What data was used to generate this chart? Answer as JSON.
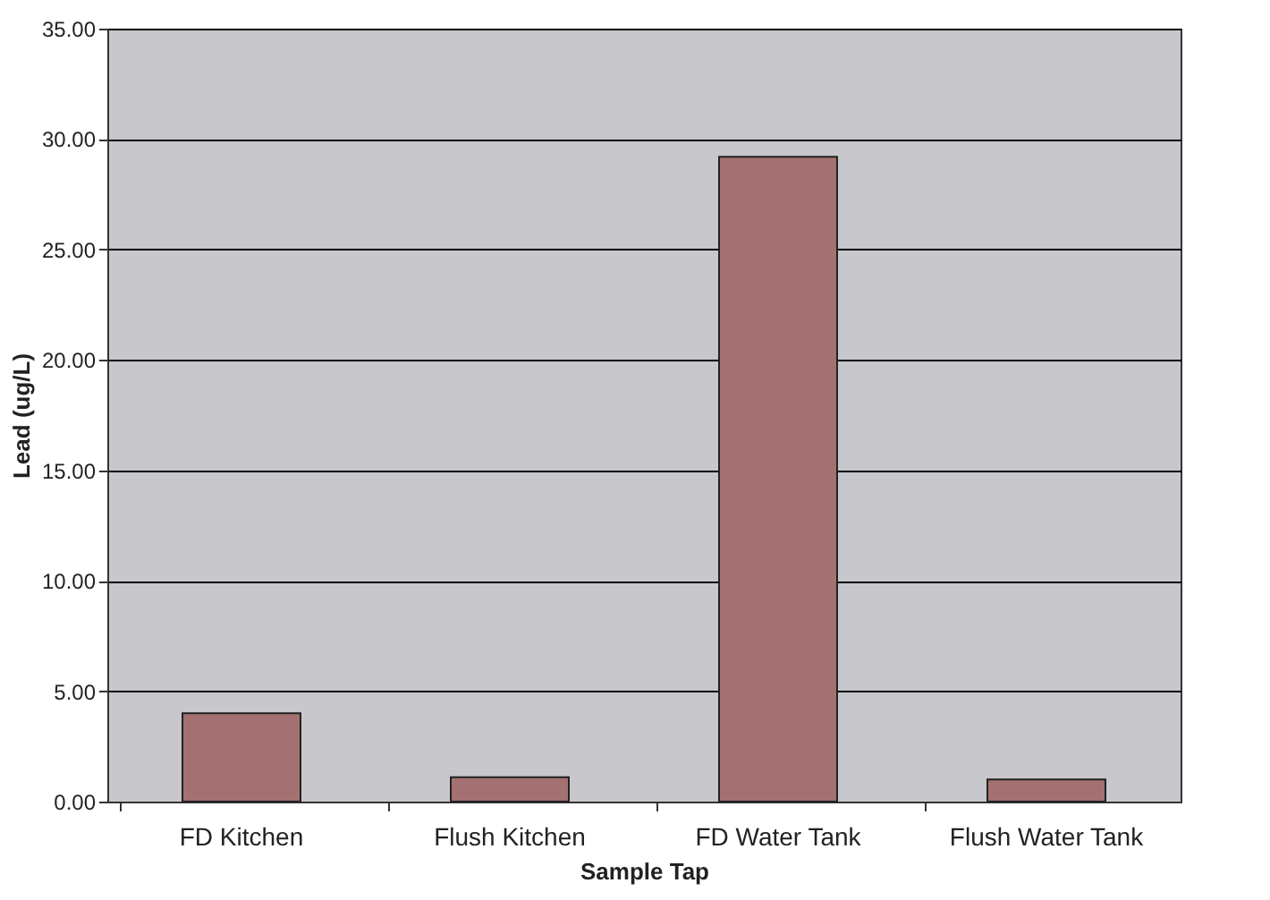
{
  "chart_data": {
    "type": "bar",
    "xlabel": "Sample Tap",
    "ylabel": "Lead (ug/L)",
    "categories": [
      "FD Kitchen",
      "Flush Kitchen",
      "FD Water Tank",
      "Flush Water Tank"
    ],
    "values": [
      4.0,
      1.1,
      29.2,
      1.0
    ],
    "color": "#a37171",
    "ylim": [
      0,
      35
    ],
    "yticks": [
      {
        "value": 0,
        "label": "0.00"
      },
      {
        "value": 5,
        "label": "5.00"
      },
      {
        "value": 10,
        "label": "10.00"
      },
      {
        "value": 15,
        "label": "15.00"
      },
      {
        "value": 20,
        "label": "20.00"
      },
      {
        "value": 25,
        "label": "25.00"
      },
      {
        "value": 30,
        "label": "30.00"
      },
      {
        "value": 35,
        "label": "35.00"
      }
    ],
    "grid": "y"
  }
}
